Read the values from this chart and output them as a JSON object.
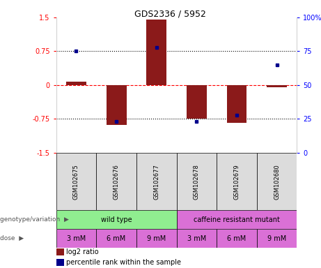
{
  "title": "GDS2336 / 5952",
  "samples": [
    "GSM102675",
    "GSM102676",
    "GSM102677",
    "GSM102678",
    "GSM102679",
    "GSM102680"
  ],
  "log2_ratio": [
    0.08,
    -0.88,
    1.45,
    -0.75,
    -0.83,
    -0.05
  ],
  "percentile_rank": [
    75,
    23,
    78,
    23,
    28,
    65
  ],
  "genotype_groups": [
    {
      "label": "wild type",
      "span": [
        0,
        3
      ],
      "color": "#90EE90"
    },
    {
      "label": "caffeine resistant mutant",
      "span": [
        3,
        6
      ],
      "color": "#DA70D6"
    }
  ],
  "doses": [
    "3 mM",
    "6 mM",
    "9 mM",
    "3 mM",
    "6 mM",
    "9 mM"
  ],
  "bar_color": "#8B1A1A",
  "dot_color": "#00008B",
  "ylim": [
    -1.5,
    1.5
  ],
  "yticks_left": [
    -1.5,
    -0.75,
    0,
    0.75,
    1.5
  ],
  "yticks_right": [
    0,
    25,
    50,
    75,
    100
  ],
  "dotted_lines": [
    -0.75,
    0.75
  ],
  "sample_bg": "#DCDCDC",
  "dose_color": "#DA70D6",
  "legend_items": [
    {
      "label": "log2 ratio",
      "color": "#8B1A1A"
    },
    {
      "label": "percentile rank within the sample",
      "color": "#00008B"
    }
  ]
}
